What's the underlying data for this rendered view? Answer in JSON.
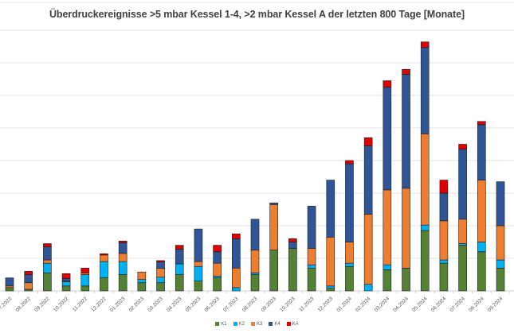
{
  "chart_data": {
    "type": "bar",
    "stacked": true,
    "title": "Überdruckereignisse >5 mbar Kessel 1-4, >2 mbar Kessel A der letzten 800 Tage [Monate]",
    "xlabel": "",
    "ylabel": "",
    "ylim": [
      0,
      80
    ],
    "grid": true,
    "legend_position": "bottom",
    "categories": [
      "07.2022",
      "08.2022",
      "09.2022",
      "10.2022",
      "11.2022",
      "12.2022",
      "01.2023",
      "02.2023",
      "03.2023",
      "04.2023",
      "05.2023",
      "06.2023",
      "07.2023",
      "08.2023",
      "09.2023",
      "10.2023",
      "11.2023",
      "12.2023",
      "01.2024",
      "02.2024",
      "03.2024",
      "04.2024",
      "05.2024",
      "06.2024",
      "07.2024",
      "08.2024",
      "09.2024"
    ],
    "series": [
      {
        "name": "K1",
        "color": "#548235",
        "values": [
          1,
          0.5,
          5.5,
          1.5,
          1.5,
          4,
          5,
          2.5,
          2.5,
          5,
          3,
          4,
          0,
          5,
          12.5,
          13,
          7,
          0.8,
          7.5,
          0,
          6.5,
          7,
          18.5,
          8.5,
          14,
          12,
          7
        ]
      },
      {
        "name": "K2",
        "color": "#00b0f0",
        "values": [
          0,
          0,
          3,
          1.3,
          3.5,
          5,
          4,
          1,
          1.7,
          3.3,
          4.5,
          0.5,
          1,
          0.5,
          0,
          0,
          1,
          0.7,
          1,
          2,
          1.5,
          0,
          1.7,
          1,
          0.5,
          3,
          2.5
        ]
      },
      {
        "name": "K3",
        "color": "#ed7d31",
        "values": [
          0.5,
          2,
          1,
          0.2,
          0.5,
          2,
          2.5,
          2.3,
          2.7,
          0,
          1.5,
          4,
          6,
          7,
          14,
          0,
          5,
          15,
          6.5,
          21.5,
          23,
          24.5,
          28,
          12,
          7.5,
          19,
          10.5
        ]
      },
      {
        "name": "K4",
        "color": "#2f5597",
        "values": [
          2.5,
          2.5,
          4,
          0.8,
          0,
          0,
          3.3,
          0,
          2,
          4.5,
          10,
          3.5,
          9,
          9.5,
          0.5,
          2,
          13,
          17.5,
          24,
          21,
          31.5,
          35,
          26.5,
          8.5,
          21.5,
          17,
          13.5
        ]
      },
      {
        "name": "KA",
        "color": "#e00000",
        "values": [
          0,
          1,
          1,
          1.5,
          1.5,
          0.4,
          0.5,
          0,
          0.4,
          1.2,
          0,
          2,
          1.5,
          0,
          0,
          1,
          0,
          0,
          1,
          2.5,
          2,
          1.5,
          1.7,
          4,
          1.5,
          1,
          0
        ]
      }
    ]
  }
}
